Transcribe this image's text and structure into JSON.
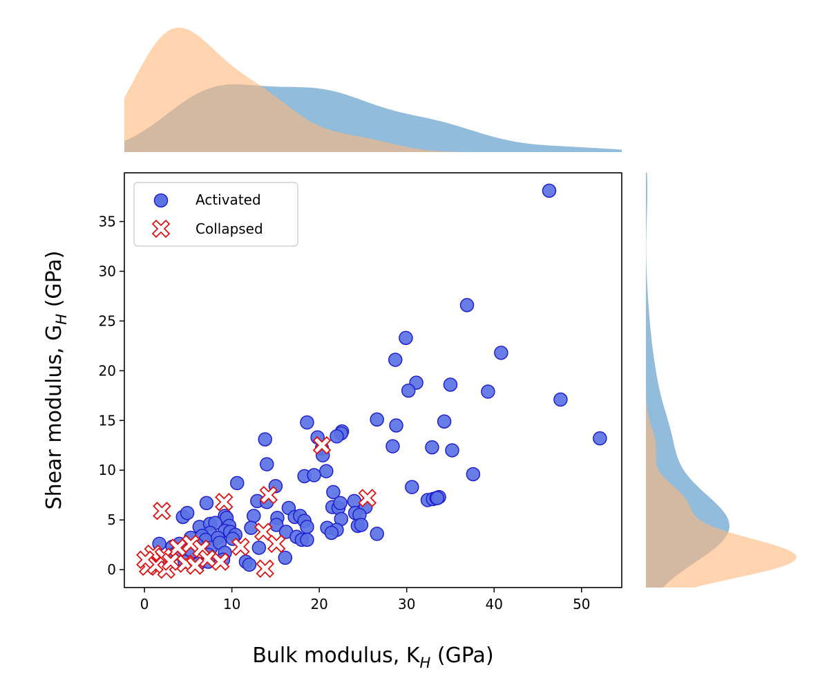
{
  "chart_data": {
    "type": "scatter",
    "xlabel": {
      "main": "Bulk modulus, K",
      "sub": "H",
      "unit": " (GPa)"
    },
    "ylabel": {
      "main": "Shear modulus, G",
      "sub": "H",
      "unit": " (GPa)"
    },
    "xlim": [
      -2.3,
      54.6
    ],
    "ylim": [
      -1.8,
      39.9
    ],
    "xticks": [
      0,
      10,
      20,
      30,
      40,
      50
    ],
    "yticks": [
      0,
      5,
      10,
      15,
      20,
      25,
      30,
      35
    ],
    "xtick_labels": [
      "0",
      "10",
      "20",
      "30",
      "40",
      "50"
    ],
    "ytick_labels": [
      "0",
      "5",
      "10",
      "15",
      "20",
      "25",
      "30",
      "35"
    ],
    "legend_position": "top-left",
    "grid": false,
    "marginals": "kde",
    "series": [
      {
        "name": "Activated",
        "marker": "circle",
        "fill": "#5b72e4",
        "edge": "#1f1fcf",
        "fill_kde": "#7fb0d6",
        "points": [
          [
            46.3,
            38.1
          ],
          [
            36.9,
            26.6
          ],
          [
            29.9,
            23.3
          ],
          [
            28.7,
            21.1
          ],
          [
            40.8,
            21.8
          ],
          [
            31.1,
            18.8
          ],
          [
            30.2,
            18.0
          ],
          [
            35.0,
            18.6
          ],
          [
            39.3,
            17.9
          ],
          [
            47.6,
            17.1
          ],
          [
            52.1,
            13.2
          ],
          [
            26.6,
            15.1
          ],
          [
            28.8,
            14.5
          ],
          [
            34.3,
            14.9
          ],
          [
            18.6,
            14.8
          ],
          [
            22.6,
            13.9
          ],
          [
            22.5,
            13.7
          ],
          [
            22.0,
            13.4
          ],
          [
            19.8,
            13.3
          ],
          [
            20.3,
            12.2
          ],
          [
            28.4,
            12.4
          ],
          [
            32.9,
            12.3
          ],
          [
            35.2,
            12.0
          ],
          [
            13.8,
            13.1
          ],
          [
            20.4,
            11.5
          ],
          [
            14.0,
            10.6
          ],
          [
            20.8,
            9.9
          ],
          [
            18.3,
            9.4
          ],
          [
            19.4,
            9.5
          ],
          [
            37.6,
            9.6
          ],
          [
            30.6,
            8.3
          ],
          [
            10.6,
            8.7
          ],
          [
            15.0,
            8.4
          ],
          [
            21.6,
            7.8
          ],
          [
            32.4,
            7.0
          ],
          [
            33.0,
            7.1
          ],
          [
            33.4,
            7.2
          ],
          [
            33.7,
            7.3
          ],
          [
            33.5,
            7.2
          ],
          [
            7.1,
            6.7
          ],
          [
            12.9,
            6.9
          ],
          [
            14.0,
            6.8
          ],
          [
            21.5,
            6.3
          ],
          [
            22.2,
            6.2
          ],
          [
            22.4,
            6.7
          ],
          [
            24.0,
            6.9
          ],
          [
            25.3,
            6.3
          ],
          [
            16.5,
            6.2
          ],
          [
            4.4,
            5.3
          ],
          [
            4.9,
            5.7
          ],
          [
            9.2,
            5.4
          ],
          [
            9.4,
            5.2
          ],
          [
            12.5,
            5.4
          ],
          [
            15.2,
            5.2
          ],
          [
            17.2,
            5.3
          ],
          [
            17.8,
            5.4
          ],
          [
            18.3,
            4.9
          ],
          [
            22.5,
            5.1
          ],
          [
            24.1,
            5.7
          ],
          [
            24.6,
            5.5
          ],
          [
            6.3,
            4.3
          ],
          [
            7.5,
            4.6
          ],
          [
            8.1,
            4.7
          ],
          [
            9.7,
            4.4
          ],
          [
            12.2,
            4.2
          ],
          [
            15.1,
            4.5
          ],
          [
            18.6,
            4.3
          ],
          [
            20.9,
            4.2
          ],
          [
            22.0,
            4.0
          ],
          [
            24.4,
            4.4
          ],
          [
            24.8,
            4.5
          ],
          [
            7.5,
            3.7
          ],
          [
            9.2,
            3.9
          ],
          [
            9.8,
            3.8
          ],
          [
            10.4,
            3.5
          ],
          [
            16.2,
            3.8
          ],
          [
            17.4,
            3.3
          ],
          [
            21.4,
            3.7
          ],
          [
            26.6,
            3.6
          ],
          [
            5.3,
            3.2
          ],
          [
            6.6,
            3.4
          ],
          [
            7.0,
            3.0
          ],
          [
            8.4,
            3.2
          ],
          [
            10.1,
            3.1
          ],
          [
            18.0,
            3.0
          ],
          [
            18.6,
            3.0
          ],
          [
            1.7,
            2.6
          ],
          [
            3.2,
            2.3
          ],
          [
            4.0,
            2.6
          ],
          [
            6.0,
            2.5
          ],
          [
            7.6,
            2.2
          ],
          [
            8.6,
            2.7
          ],
          [
            13.1,
            2.2
          ],
          [
            3.5,
            1.6
          ],
          [
            5.4,
            1.8
          ],
          [
            7.3,
            1.5
          ],
          [
            9.2,
            1.7
          ],
          [
            16.1,
            1.2
          ],
          [
            11.6,
            0.8
          ],
          [
            12.0,
            0.5
          ],
          [
            2.3,
            0.9
          ],
          [
            4.6,
            0.8
          ],
          [
            6.2,
            0.6
          ],
          [
            7.3,
            0.8
          ],
          [
            9.0,
            1.0
          ]
        ]
      },
      {
        "name": "Collapsed",
        "marker": "x-filled",
        "fill": "#ffffff",
        "edge": "#e01010",
        "fill_kde": "#ffb77a",
        "points": [
          [
            2.0,
            5.9
          ],
          [
            9.1,
            6.8
          ],
          [
            14.2,
            7.5
          ],
          [
            20.3,
            12.5
          ],
          [
            25.5,
            7.2
          ],
          [
            13.6,
            3.8
          ],
          [
            15.1,
            2.6
          ],
          [
            11.0,
            2.3
          ],
          [
            5.3,
            2.6
          ],
          [
            3.8,
            2.2
          ],
          [
            6.5,
            2.1
          ],
          [
            1.0,
            1.6
          ],
          [
            2.2,
            1.3
          ],
          [
            7.2,
            1.1
          ],
          [
            8.7,
            0.8
          ],
          [
            4.7,
            0.6
          ],
          [
            5.8,
            0.4
          ],
          [
            0.4,
            0.3
          ],
          [
            1.3,
            0.4
          ],
          [
            2.5,
            0.0
          ],
          [
            13.8,
            0.1
          ],
          [
            0.1,
            1.0
          ],
          [
            3.0,
            0.8
          ]
        ]
      }
    ]
  }
}
